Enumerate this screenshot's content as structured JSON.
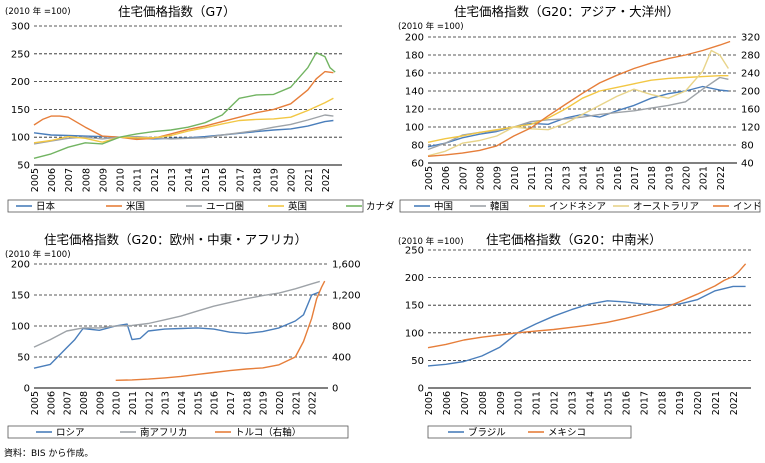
{
  "source_note": "資料：BIS から作成。",
  "chart_data": [
    {
      "id": "g7",
      "type": "line",
      "title": "住宅価格指数（G7）",
      "unit_label": "(2010 年 =100)",
      "xlim": [
        2005,
        2023
      ],
      "ylim": [
        50,
        300
      ],
      "yticks": [
        50,
        100,
        150,
        200,
        250,
        300
      ],
      "x_tick_labels": [
        "2005",
        "2006",
        "2007",
        "2008",
        "2009",
        "2010",
        "2011",
        "2012",
        "2013",
        "2014",
        "2015",
        "2016",
        "2017",
        "2018",
        "2019",
        "2020",
        "2021",
        "2022"
      ],
      "series": [
        {
          "name": "日本",
          "color": "#4a7ebb",
          "axis": "left",
          "x": [
            2005,
            2006,
            2007,
            2008,
            2009,
            2010,
            2011,
            2012,
            2013,
            2014,
            2015,
            2016,
            2017,
            2018,
            2019,
            2020,
            2021,
            2022,
            2022.5
          ],
          "y": [
            108,
            104,
            103,
            102,
            101,
            100,
            98,
            97,
            98,
            99,
            101,
            104,
            107,
            110,
            113,
            115,
            120,
            128,
            130
          ]
        },
        {
          "name": "米国",
          "color": "#e67e3a",
          "axis": "left",
          "x": [
            2005,
            2005.5,
            2006,
            2006.5,
            2007,
            2008,
            2009,
            2010,
            2011,
            2012,
            2013,
            2014,
            2015,
            2016,
            2017,
            2018,
            2019,
            2020,
            2021,
            2021.5,
            2022,
            2022.5
          ],
          "y": [
            122,
            132,
            138,
            138,
            136,
            118,
            102,
            100,
            96,
            98,
            106,
            114,
            120,
            128,
            136,
            144,
            150,
            160,
            185,
            205,
            218,
            216
          ]
        },
        {
          "name": "ユーロ圏",
          "color": "#9ea3a8",
          "axis": "left",
          "x": [
            2005,
            2006,
            2007,
            2008,
            2009,
            2010,
            2011,
            2012,
            2013,
            2014,
            2015,
            2016,
            2017,
            2018,
            2019,
            2020,
            2021,
            2022,
            2022.5
          ],
          "y": [
            88,
            93,
            98,
            100,
            97,
            100,
            101,
            99,
            97,
            98,
            99,
            104,
            108,
            112,
            118,
            123,
            131,
            140,
            138
          ]
        },
        {
          "name": "英国",
          "color": "#f2c744",
          "axis": "left",
          "x": [
            2005,
            2006,
            2007,
            2008,
            2009,
            2010,
            2011,
            2012,
            2013,
            2014,
            2015,
            2016,
            2017,
            2018,
            2019,
            2020,
            2021,
            2022,
            2022.5
          ],
          "y": [
            90,
            94,
            101,
            98,
            91,
            100,
            99,
            99,
            103,
            111,
            117,
            124,
            130,
            132,
            133,
            136,
            148,
            162,
            170
          ]
        },
        {
          "name": "カナダ",
          "color": "#72b462",
          "axis": "left",
          "x": [
            2005,
            2006,
            2007,
            2008,
            2009,
            2010,
            2011,
            2012,
            2013,
            2014,
            2015,
            2016,
            2017,
            2018,
            2019,
            2020,
            2021,
            2021.5,
            2022,
            2022.3,
            2022.6
          ],
          "y": [
            62,
            70,
            82,
            90,
            88,
            100,
            106,
            110,
            113,
            118,
            126,
            140,
            170,
            176,
            177,
            190,
            225,
            252,
            245,
            225,
            217
          ]
        }
      ]
    },
    {
      "id": "asia",
      "type": "line",
      "title": "住宅価格指数（G20：アジア・大洋州）",
      "unit_label": "(2010 年 =100)",
      "xlim": [
        2005,
        2023
      ],
      "ylim": [
        60,
        200
      ],
      "yticks": [
        60,
        80,
        100,
        120,
        140,
        160,
        180,
        200
      ],
      "ylim_right": [
        40,
        320
      ],
      "yticks_right": [
        40,
        80,
        120,
        160,
        200,
        240,
        280,
        320
      ],
      "x_tick_labels": [
        "2005",
        "2006",
        "2007",
        "2008",
        "2009",
        "2010",
        "2011",
        "2012",
        "2013",
        "2014",
        "2015",
        "2016",
        "2017",
        "2018",
        "2019",
        "2020",
        "2021",
        "2022"
      ],
      "series": [
        {
          "name": "中国",
          "color": "#4a7ebb",
          "axis": "left",
          "x": [
            2005,
            2006,
            2007,
            2008,
            2009,
            2010,
            2011,
            2012,
            2013,
            2014,
            2015,
            2016,
            2017,
            2018,
            2019,
            2020,
            2021,
            2022,
            2022.5
          ],
          "y": [
            78,
            82,
            88,
            92,
            95,
            100,
            104,
            103,
            110,
            114,
            111,
            118,
            124,
            132,
            137,
            140,
            145,
            141,
            140
          ]
        },
        {
          "name": "韓国",
          "color": "#9ea3a8",
          "axis": "left",
          "x": [
            2005,
            2006,
            2007,
            2008,
            2009,
            2010,
            2011,
            2012,
            2013,
            2014,
            2015,
            2016,
            2017,
            2018,
            2019,
            2020,
            2021,
            2022,
            2022.5
          ],
          "y": [
            75,
            82,
            91,
            94,
            96,
            100,
            106,
            108,
            109,
            111,
            114,
            116,
            118,
            121,
            124,
            128,
            142,
            155,
            153
          ]
        },
        {
          "name": "インドネシア",
          "color": "#f2c744",
          "axis": "left",
          "x": [
            2005,
            2006,
            2007,
            2008,
            2009,
            2010,
            2011,
            2012,
            2013,
            2014,
            2015,
            2016,
            2017,
            2018,
            2019,
            2020,
            2021,
            2022,
            2022.5
          ],
          "y": [
            83,
            87,
            90,
            94,
            97,
            100,
            103,
            110,
            120,
            132,
            140,
            144,
            148,
            152,
            154,
            155,
            156,
            157,
            157
          ]
        },
        {
          "name": "オーストラリア",
          "color": "#e8d48a",
          "axis": "left",
          "x": [
            2005,
            2006,
            2007,
            2008,
            2009,
            2010,
            2011,
            2012,
            2013,
            2014,
            2015,
            2016,
            2017,
            2018,
            2019,
            2020,
            2021,
            2021.5,
            2022,
            2022.5
          ],
          "y": [
            68,
            73,
            82,
            85,
            90,
            100,
            98,
            97,
            104,
            114,
            124,
            134,
            142,
            136,
            132,
            140,
            162,
            185,
            180,
            165
          ]
        },
        {
          "name": "インド（右軸）",
          "color": "#e67e3a",
          "axis": "right",
          "x": [
            2005,
            2006,
            2007,
            2008,
            2009,
            2010,
            2011,
            2012,
            2013,
            2014,
            2015,
            2016,
            2017,
            2018,
            2019,
            2020,
            2021,
            2022,
            2022.6
          ],
          "y": [
            55,
            58,
            62,
            68,
            78,
            100,
            118,
            145,
            170,
            195,
            218,
            235,
            250,
            262,
            272,
            280,
            290,
            302,
            310
          ]
        }
      ]
    },
    {
      "id": "europe",
      "type": "line",
      "title": "住宅価格指数（G20：欧州・中東・アフリカ）",
      "unit_label": "(2010 年 =100)",
      "xlim": [
        2005,
        2023
      ],
      "ylim": [
        0,
        200
      ],
      "yticks": [
        0,
        50,
        100,
        150,
        200
      ],
      "ylim_right": [
        0,
        1600
      ],
      "yticks_right": [
        0,
        400,
        800,
        1200,
        1600
      ],
      "x_tick_labels": [
        "2005",
        "2006",
        "2007",
        "2008",
        "2009",
        "2010",
        "2011",
        "2012",
        "2013",
        "2014",
        "2015",
        "2016",
        "2017",
        "2018",
        "2019",
        "2020",
        "2021",
        "2022"
      ],
      "series": [
        {
          "name": "ロシア",
          "color": "#4a7ebb",
          "axis": "left",
          "x": [
            2005,
            2006,
            2007,
            2007.5,
            2008,
            2009,
            2010,
            2010.7,
            2011,
            2011.5,
            2012,
            2013,
            2014,
            2015,
            2016,
            2017,
            2018,
            2019,
            2020,
            2021,
            2021.5,
            2022,
            2022.5
          ],
          "y": [
            32,
            38,
            65,
            78,
            96,
            93,
            100,
            103,
            78,
            80,
            92,
            95,
            96,
            97,
            95,
            90,
            88,
            91,
            97,
            108,
            118,
            150,
            155
          ]
        },
        {
          "name": "南アフリカ",
          "color": "#9ea3a8",
          "axis": "left",
          "x": [
            2005,
            2006,
            2007,
            2008,
            2009,
            2010,
            2011,
            2012,
            2013,
            2014,
            2015,
            2016,
            2017,
            2018,
            2019,
            2020,
            2021,
            2022,
            2022.5
          ],
          "y": [
            66,
            78,
            92,
            97,
            97,
            100,
            101,
            104,
            110,
            116,
            124,
            132,
            138,
            144,
            149,
            153,
            160,
            168,
            172
          ]
        },
        {
          "name": "トルコ（右軸）",
          "color": "#e67e3a",
          "axis": "right",
          "x": [
            2010,
            2011,
            2012,
            2013,
            2014,
            2015,
            2016,
            2017,
            2018,
            2019,
            2020,
            2021,
            2021.5,
            2022,
            2022.3,
            2022.6,
            2022.8
          ],
          "y": [
            100,
            105,
            115,
            130,
            150,
            175,
            200,
            225,
            245,
            260,
            300,
            400,
            600,
            900,
            1150,
            1300,
            1380
          ]
        }
      ]
    },
    {
      "id": "latam",
      "type": "line",
      "title": "住宅価格指数（G20：中南米）",
      "unit_label": "(2010 年 =100)",
      "xlim": [
        2005,
        2023
      ],
      "ylim": [
        0,
        250
      ],
      "yticks": [
        0,
        50,
        100,
        150,
        200,
        250
      ],
      "x_tick_labels": [
        "2005",
        "2006",
        "2007",
        "2008",
        "2009",
        "2010",
        "2011",
        "2012",
        "2013",
        "2014",
        "2015",
        "2016",
        "2017",
        "2018",
        "2019",
        "2020",
        "2021",
        "2022"
      ],
      "series": [
        {
          "name": "ブラジル",
          "color": "#4a7ebb",
          "axis": "left",
          "x": [
            2005,
            2006,
            2007,
            2008,
            2009,
            2010,
            2011,
            2012,
            2013,
            2014,
            2015,
            2016,
            2017,
            2018,
            2019,
            2020,
            2021,
            2022,
            2022.7
          ],
          "y": [
            40,
            43,
            48,
            58,
            74,
            100,
            116,
            130,
            142,
            152,
            158,
            156,
            152,
            150,
            152,
            160,
            176,
            184,
            184
          ]
        },
        {
          "name": "メキシコ",
          "color": "#e67e3a",
          "axis": "left",
          "x": [
            2005,
            2006,
            2007,
            2008,
            2009,
            2010,
            2011,
            2012,
            2013,
            2014,
            2015,
            2016,
            2017,
            2018,
            2019,
            2020,
            2021,
            2021.5,
            2022,
            2022.3,
            2022.7
          ],
          "y": [
            73,
            79,
            87,
            92,
            96,
            100,
            103,
            106,
            110,
            114,
            119,
            126,
            134,
            143,
            156,
            170,
            185,
            195,
            202,
            210,
            225
          ]
        }
      ]
    }
  ]
}
